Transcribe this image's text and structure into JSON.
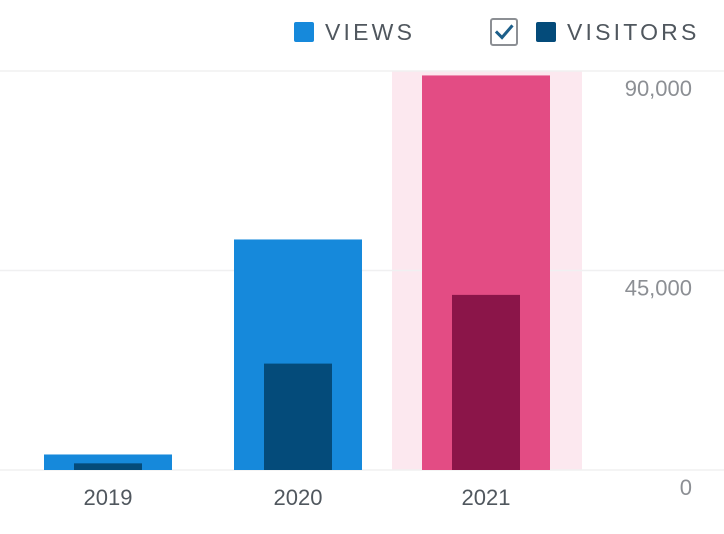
{
  "legend": {
    "views_label": "VIEWS",
    "visitors_label": "VISITORS",
    "visitors_checked": true
  },
  "colors": {
    "views": "#1689db",
    "visitors": "#044b7a",
    "highlight_views": "#e34c84",
    "highlight_visitors": "#8b1549",
    "highlight_band": "#fce8ef",
    "grid": "#f0f0f1",
    "axis_text_y": "#8c8f94",
    "axis_text_x": "#50575e",
    "legend_text": "#50575e",
    "checkmark": "#1d5f8a"
  },
  "chart_data": {
    "type": "bar",
    "categories": [
      "2019",
      "2020",
      "2021"
    ],
    "series": [
      {
        "name": "VIEWS",
        "values": [
          3500,
          52000,
          89000
        ]
      },
      {
        "name": "VISITORS",
        "values": [
          1500,
          24000,
          39500
        ]
      }
    ],
    "yticks": [
      0,
      45000,
      90000
    ],
    "ytick_labels": [
      "0",
      "45,000",
      "90,000"
    ],
    "ylim": [
      0,
      90000
    ],
    "highlighted_category": "2021",
    "grid": true,
    "legend_position": "top-right",
    "title": "",
    "xlabel": "",
    "ylabel": ""
  }
}
